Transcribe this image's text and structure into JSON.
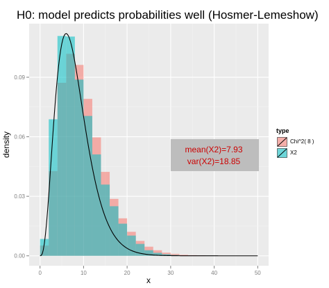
{
  "chart_data": {
    "type": "histogram",
    "title": "H0: model predicts probabilities well (Hosmer-Lemeshow)",
    "xlabel": "x",
    "ylabel": "density",
    "xlim": [
      -2.5,
      52.5
    ],
    "ylim": [
      -0.005,
      0.117
    ],
    "x_ticks": [
      0,
      10,
      20,
      30,
      40,
      50
    ],
    "y_ticks": [
      0.0,
      0.03,
      0.06,
      0.09
    ],
    "y_tick_labels": [
      "0.00",
      "0.03",
      "0.06",
      "0.09"
    ],
    "grid": true,
    "bin_width": 2,
    "bin_edges": [
      0,
      2,
      4,
      6,
      8,
      10,
      12,
      14,
      16,
      18,
      20,
      22,
      24,
      26,
      28,
      30,
      32,
      34,
      36,
      38,
      40,
      42,
      44,
      46,
      48,
      50
    ],
    "series": [
      {
        "name": "Chi^2( 8 )",
        "color": "#F8766D",
        "densities": [
          0.0052,
          0.0427,
          0.0872,
          0.1018,
          0.0962,
          0.0791,
          0.0597,
          0.0423,
          0.0287,
          0.0189,
          0.0121,
          0.0075,
          0.0046,
          0.0028,
          0.0016,
          0.001,
          0.0005,
          0.0003,
          0.0002,
          0.0001,
          0.0001,
          0.0,
          0.0,
          0.0,
          0.0
        ]
      },
      {
        "name": "X2",
        "color": "#00BFC4",
        "densities": [
          0.0085,
          0.0688,
          0.1108,
          0.1105,
          0.0888,
          0.0705,
          0.0511,
          0.0359,
          0.025,
          0.0162,
          0.0102,
          0.006,
          0.0028,
          0.0015,
          0.0008,
          0.0004,
          0.0001,
          0.0001,
          0.0,
          0.0,
          0.0,
          0.0,
          0.0,
          0.0,
          0.0
        ]
      }
    ],
    "density_curve": {
      "name": "Chi^2 density (df = 8)",
      "df": 8,
      "color": "#000000"
    },
    "legend": {
      "title": "type",
      "position": "right",
      "entries": [
        "Chi^2( 8 )",
        "X2"
      ]
    },
    "annotation": {
      "lines": [
        "mean(X2)=7.93",
        "var(X2)=18.85"
      ],
      "color": "#CC0000",
      "box_color": "#BDBDBD",
      "position": "right"
    }
  }
}
